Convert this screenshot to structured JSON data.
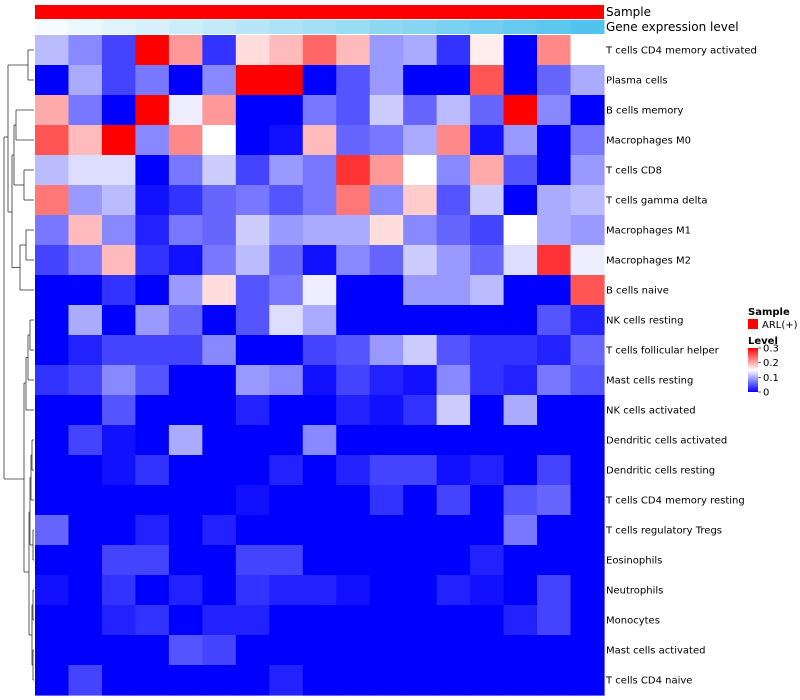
{
  "chart_data": {
    "type": "heatmap",
    "title": "",
    "annotations": [
      {
        "name": "Sample",
        "kind": "categorical",
        "color": "#ff0000"
      },
      {
        "name": "Gene expression level",
        "kind": "gradient",
        "from": "#f5fbfe",
        "to": "#52c3ee"
      }
    ],
    "rows": [
      "T cells CD4 memory activated",
      "Plasma cells",
      "B cells memory",
      "Macrophages M0",
      "T cells CD8",
      "T cells gamma delta",
      "Macrophages M1",
      "Macrophages M2",
      "B cells naive",
      "NK cells resting",
      "T cells follicular helper",
      "Mast cells resting",
      "NK cells activated",
      "Dendritic cells activated",
      "Dendritic cells resting",
      "T cells CD4 memory resting",
      "T cells regulatory  Tregs",
      "Eosinophils",
      "Neutrophils",
      "Monocytes",
      "Mast cells activated",
      "T cells CD4 naive"
    ],
    "n_columns": 17,
    "values": [
      [
        0.11,
        0.08,
        0.04,
        0.3,
        0.21,
        0.03,
        0.17,
        0.19,
        0.24,
        0.19,
        0.09,
        0.1,
        0.03,
        0.16,
        0.0,
        0.22,
        0.15
      ],
      [
        0.0,
        0.1,
        0.04,
        0.07,
        0.0,
        0.08,
        0.3,
        0.3,
        0.0,
        0.05,
        0.09,
        0.0,
        0.0,
        0.25,
        0.0,
        0.06,
        0.1
      ],
      [
        0.2,
        0.07,
        0.0,
        0.3,
        0.14,
        0.21,
        0.0,
        0.0,
        0.07,
        0.05,
        0.12,
        0.06,
        0.11,
        0.06,
        0.3,
        0.08,
        0.0
      ],
      [
        0.25,
        0.19,
        0.3,
        0.08,
        0.22,
        0.15,
        0.0,
        0.01,
        0.19,
        0.06,
        0.07,
        0.1,
        0.22,
        0.01,
        0.09,
        0.0,
        0.07
      ],
      [
        0.11,
        0.13,
        0.13,
        0.0,
        0.07,
        0.12,
        0.04,
        0.09,
        0.07,
        0.27,
        0.21,
        0.15,
        0.08,
        0.2,
        0.05,
        0.0,
        0.09
      ],
      [
        0.23,
        0.09,
        0.11,
        0.01,
        0.03,
        0.06,
        0.07,
        0.05,
        0.07,
        0.23,
        0.08,
        0.18,
        0.05,
        0.12,
        0.0,
        0.1,
        0.11
      ],
      [
        0.07,
        0.19,
        0.08,
        0.02,
        0.07,
        0.06,
        0.12,
        0.09,
        0.1,
        0.1,
        0.17,
        0.08,
        0.06,
        0.04,
        0.15,
        0.1,
        0.09
      ],
      [
        0.04,
        0.07,
        0.19,
        0.03,
        0.01,
        0.07,
        0.11,
        0.06,
        0.01,
        0.08,
        0.06,
        0.12,
        0.09,
        0.06,
        0.13,
        0.27,
        0.14
      ],
      [
        0.0,
        0.0,
        0.03,
        0.0,
        0.09,
        0.17,
        0.05,
        0.07,
        0.14,
        0.0,
        0.0,
        0.09,
        0.09,
        0.11,
        0.0,
        0.0,
        0.25
      ],
      [
        0.0,
        0.1,
        0.0,
        0.09,
        0.06,
        0.0,
        0.05,
        0.13,
        0.1,
        0.0,
        0.0,
        0.0,
        0.0,
        0.0,
        0.0,
        0.05,
        0.02
      ],
      [
        0.0,
        0.02,
        0.04,
        0.04,
        0.04,
        0.08,
        0.0,
        0.0,
        0.04,
        0.05,
        0.09,
        0.12,
        0.05,
        0.03,
        0.03,
        0.02,
        0.06
      ],
      [
        0.03,
        0.04,
        0.08,
        0.05,
        0.0,
        0.0,
        0.09,
        0.08,
        0.01,
        0.04,
        0.02,
        0.01,
        0.08,
        0.03,
        0.02,
        0.07,
        0.05
      ],
      [
        0.0,
        0.0,
        0.05,
        0.0,
        0.0,
        0.0,
        0.02,
        0.0,
        0.0,
        0.02,
        0.01,
        0.03,
        0.12,
        0.0,
        0.1,
        0.0,
        0.0
      ],
      [
        0.0,
        0.04,
        0.01,
        0.0,
        0.1,
        0.0,
        0.0,
        0.0,
        0.08,
        0.0,
        0.0,
        0.0,
        0.0,
        0.0,
        0.0,
        0.0,
        0.0
      ],
      [
        0.0,
        0.0,
        0.01,
        0.03,
        0.0,
        0.0,
        0.0,
        0.02,
        0.0,
        0.02,
        0.04,
        0.04,
        0.01,
        0.02,
        0.0,
        0.04,
        0.0
      ],
      [
        0.0,
        0.0,
        0.0,
        0.0,
        0.0,
        0.0,
        0.01,
        0.0,
        0.0,
        0.0,
        0.03,
        0.0,
        0.04,
        0.0,
        0.05,
        0.06,
        0.0
      ],
      [
        0.06,
        0.0,
        0.0,
        0.02,
        0.0,
        0.02,
        0.0,
        0.0,
        0.0,
        0.0,
        0.0,
        0.0,
        0.0,
        0.0,
        0.07,
        0.0,
        0.0
      ],
      [
        0.0,
        0.0,
        0.04,
        0.04,
        0.0,
        0.0,
        0.04,
        0.04,
        0.0,
        0.0,
        0.0,
        0.0,
        0.0,
        0.02,
        0.0,
        0.0,
        0.0
      ],
      [
        0.01,
        0.0,
        0.03,
        0.0,
        0.02,
        0.0,
        0.03,
        0.02,
        0.02,
        0.01,
        0.0,
        0.0,
        0.02,
        0.01,
        0.0,
        0.04,
        0.0
      ],
      [
        0.0,
        0.0,
        0.02,
        0.03,
        0.0,
        0.02,
        0.02,
        0.0,
        0.0,
        0.0,
        0.0,
        0.0,
        0.0,
        0.0,
        0.02,
        0.04,
        0.0
      ],
      [
        0.0,
        0.0,
        0.0,
        0.0,
        0.05,
        0.04,
        0.0,
        0.0,
        0.0,
        0.0,
        0.0,
        0.0,
        0.0,
        0.0,
        0.0,
        0.0,
        0.0
      ],
      [
        0.0,
        0.04,
        0.0,
        0.0,
        0.0,
        0.0,
        0.0,
        0.02,
        0.0,
        0.0,
        0.0,
        0.0,
        0.0,
        0.0,
        0.0,
        0.0,
        0.0
      ]
    ],
    "color_scale": {
      "min": 0,
      "mid": 0.15,
      "max": 0.3,
      "low": "#0000ff",
      "midColor": "#ffffff",
      "high": "#ff0000"
    },
    "legend": {
      "sample_title": "Sample",
      "sample_entry": "ARL(+)",
      "sample_color": "#ff0000",
      "level_title": "Level",
      "level_ticks": [
        "0.3",
        "0.2",
        "0.1",
        "0"
      ]
    }
  }
}
